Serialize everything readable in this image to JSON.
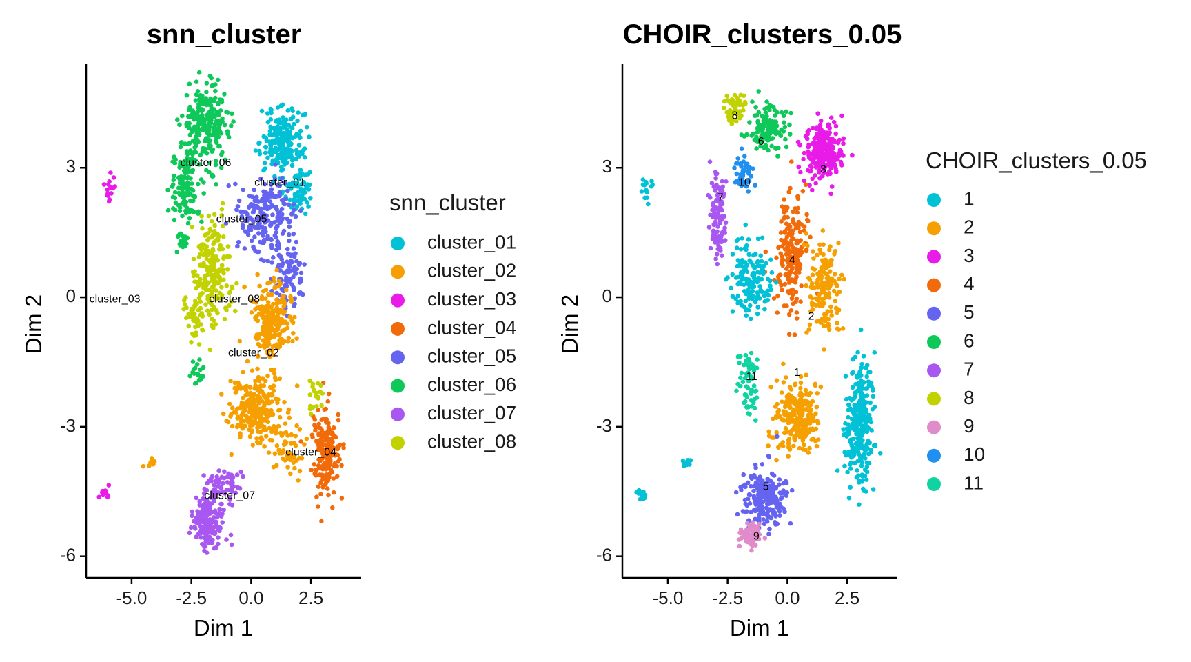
{
  "chart_data": [
    {
      "type": "scatter",
      "title": "snn_cluster",
      "xlabel": "Dim 1",
      "ylabel": "Dim 2",
      "xlim": [
        -6.9,
        4.6
      ],
      "ylim": [
        -6.5,
        5.4
      ],
      "xticks": [
        -5.0,
        -2.5,
        0.0,
        2.5
      ],
      "xtick_labels": [
        "-5.0",
        "-2.5",
        "0.0",
        "2.5"
      ],
      "yticks": [
        -6,
        -3,
        0,
        3
      ],
      "ytick_labels": [
        "-6",
        "-3",
        "0",
        "3"
      ],
      "grid": false,
      "legend": {
        "title": "snn_cluster",
        "placement": "right",
        "entries": [
          {
            "label": "cluster_01",
            "color": "#00C1D5"
          },
          {
            "label": "cluster_02",
            "color": "#F5A000"
          },
          {
            "label": "cluster_03",
            "color": "#E81BE8"
          },
          {
            "label": "cluster_04",
            "color": "#F26B0A"
          },
          {
            "label": "cluster_05",
            "color": "#6464F0"
          },
          {
            "label": "cluster_06",
            "color": "#0FC85A"
          },
          {
            "label": "cluster_07",
            "color": "#A858F0"
          },
          {
            "label": "cluster_08",
            "color": "#C2D200"
          }
        ]
      },
      "cluster_labels": [
        {
          "text": "cluster_06",
          "x": -1.9,
          "y": 3.1
        },
        {
          "text": "cluster_01",
          "x": 1.2,
          "y": 2.65
        },
        {
          "text": "cluster_05",
          "x": -0.4,
          "y": 1.8
        },
        {
          "text": "cluster_03",
          "x": -5.7,
          "y": -0.05
        },
        {
          "text": "cluster_08",
          "x": -0.7,
          "y": -0.05
        },
        {
          "text": "cluster_02",
          "x": 0.1,
          "y": -1.3
        },
        {
          "text": "cluster_04",
          "x": 2.5,
          "y": -3.6
        },
        {
          "text": "cluster_07",
          "x": -0.9,
          "y": -4.6
        }
      ],
      "regions": [
        {
          "c": 5,
          "x": -1.9,
          "y": 4.0,
          "sx": 0.9,
          "sy": 0.8,
          "n": 260
        },
        {
          "c": 5,
          "x": -2.7,
          "y": 2.6,
          "sx": 0.6,
          "sy": 0.8,
          "n": 120
        },
        {
          "c": 5,
          "x": -2.9,
          "y": 1.3,
          "sx": 0.2,
          "sy": 0.2,
          "n": 18
        },
        {
          "c": 0,
          "x": 1.3,
          "y": 3.6,
          "sx": 0.8,
          "sy": 0.7,
          "n": 220
        },
        {
          "c": 0,
          "x": 2.0,
          "y": 2.5,
          "sx": 0.5,
          "sy": 0.5,
          "n": 70
        },
        {
          "c": 4,
          "x": 0.7,
          "y": 1.9,
          "sx": 1.0,
          "sy": 0.8,
          "n": 200
        },
        {
          "c": 4,
          "x": 1.6,
          "y": 0.5,
          "sx": 0.6,
          "sy": 0.7,
          "n": 90
        },
        {
          "c": 7,
          "x": -1.6,
          "y": 0.6,
          "sx": 0.7,
          "sy": 1.1,
          "n": 200
        },
        {
          "c": 7,
          "x": -2.4,
          "y": -0.3,
          "sx": 0.4,
          "sy": 0.7,
          "n": 50
        },
        {
          "c": 1,
          "x": 0.9,
          "y": -0.5,
          "sx": 0.8,
          "sy": 0.8,
          "n": 220
        },
        {
          "c": 1,
          "x": 0.2,
          "y": -2.6,
          "sx": 1.0,
          "sy": 0.7,
          "n": 260
        },
        {
          "c": 1,
          "x": 1.5,
          "y": -3.5,
          "sx": 0.6,
          "sy": 0.5,
          "n": 60
        },
        {
          "c": 3,
          "x": 3.1,
          "y": -3.6,
          "sx": 0.5,
          "sy": 0.9,
          "n": 180
        },
        {
          "c": 6,
          "x": -1.8,
          "y": -5.2,
          "sx": 0.6,
          "sy": 0.5,
          "n": 160
        },
        {
          "c": 6,
          "x": -1.2,
          "y": -4.4,
          "sx": 0.6,
          "sy": 0.4,
          "n": 70
        },
        {
          "c": 2,
          "x": -5.9,
          "y": 2.5,
          "sx": 0.25,
          "sy": 0.3,
          "n": 16
        },
        {
          "c": 2,
          "x": -6.1,
          "y": -4.55,
          "sx": 0.2,
          "sy": 0.15,
          "n": 14
        },
        {
          "c": 1,
          "x": -4.2,
          "y": -3.8,
          "sx": 0.2,
          "sy": 0.15,
          "n": 8
        },
        {
          "c": 5,
          "x": -2.3,
          "y": -1.8,
          "sx": 0.3,
          "sy": 0.4,
          "n": 20
        },
        {
          "c": 7,
          "x": 2.7,
          "y": -2.3,
          "sx": 0.3,
          "sy": 0.4,
          "n": 20
        }
      ]
    },
    {
      "type": "scatter",
      "title": "CHOIR_clusters_0.05",
      "xlabel": "Dim 1",
      "ylabel": "Dim 2",
      "xlim": [
        -6.9,
        4.6
      ],
      "ylim": [
        -6.5,
        5.4
      ],
      "xticks": [
        -5.0,
        -2.5,
        0.0,
        2.5
      ],
      "xtick_labels": [
        "-5.0",
        "-2.5",
        "0.0",
        "2.5"
      ],
      "yticks": [
        -6,
        -3,
        0,
        3
      ],
      "ytick_labels": [
        "-6",
        "-3",
        "0",
        "3"
      ],
      "grid": false,
      "legend": {
        "title": "CHOIR_clusters_0.05",
        "placement": "right",
        "entries": [
          {
            "label": "1",
            "color": "#00C1D5"
          },
          {
            "label": "2",
            "color": "#F5A000"
          },
          {
            "label": "3",
            "color": "#E81BE8"
          },
          {
            "label": "4",
            "color": "#F26B0A"
          },
          {
            "label": "5",
            "color": "#6464F0"
          },
          {
            "label": "6",
            "color": "#0FC85A"
          },
          {
            "label": "7",
            "color": "#A858F0"
          },
          {
            "label": "8",
            "color": "#C2D200"
          },
          {
            "label": "9",
            "color": "#E08CCB"
          },
          {
            "label": "10",
            "color": "#1F8FF0"
          },
          {
            "label": "11",
            "color": "#0FD3A0"
          }
        ]
      },
      "cluster_labels": [
        {
          "text": "8",
          "x": -2.2,
          "y": 4.2
        },
        {
          "text": "6",
          "x": -1.1,
          "y": 3.6
        },
        {
          "text": "3",
          "x": 1.5,
          "y": 2.95
        },
        {
          "text": "10",
          "x": -1.8,
          "y": 2.65
        },
        {
          "text": "7",
          "x": -2.8,
          "y": 2.3
        },
        {
          "text": "4",
          "x": 0.2,
          "y": 0.85
        },
        {
          "text": "2",
          "x": 1.0,
          "y": -0.45
        },
        {
          "text": "1",
          "x": 0.4,
          "y": -1.75
        },
        {
          "text": "11",
          "x": -1.5,
          "y": -1.85
        },
        {
          "text": "5",
          "x": -0.9,
          "y": -4.4
        },
        {
          "text": "9",
          "x": -1.3,
          "y": -5.55
        }
      ],
      "regions": [
        {
          "c": 7,
          "x": -2.2,
          "y": 4.4,
          "sx": 0.35,
          "sy": 0.3,
          "n": 60
        },
        {
          "c": 5,
          "x": -0.8,
          "y": 3.9,
          "sx": 0.7,
          "sy": 0.5,
          "n": 130
        },
        {
          "c": 2,
          "x": 1.5,
          "y": 3.4,
          "sx": 0.7,
          "sy": 0.6,
          "n": 240
        },
        {
          "c": 9,
          "x": -1.8,
          "y": 2.9,
          "sx": 0.4,
          "sy": 0.4,
          "n": 50
        },
        {
          "c": 6,
          "x": -2.9,
          "y": 2.0,
          "sx": 0.3,
          "sy": 1.0,
          "n": 90
        },
        {
          "c": 6,
          "x": -2.9,
          "y": 1.3,
          "sx": 0.2,
          "sy": 0.2,
          "n": 18
        },
        {
          "c": 3,
          "x": 0.2,
          "y": 1.0,
          "sx": 0.6,
          "sy": 1.2,
          "n": 200
        },
        {
          "c": 1,
          "x": 1.5,
          "y": 0.2,
          "sx": 0.6,
          "sy": 1.0,
          "n": 160
        },
        {
          "c": 1,
          "x": 0.4,
          "y": -2.8,
          "sx": 0.8,
          "sy": 0.8,
          "n": 230
        },
        {
          "c": 0,
          "x": -1.5,
          "y": 0.4,
          "sx": 0.8,
          "sy": 0.8,
          "n": 150
        },
        {
          "c": 0,
          "x": 3.0,
          "y": -3.0,
          "sx": 0.55,
          "sy": 1.2,
          "n": 300
        },
        {
          "c": 10,
          "x": -1.6,
          "y": -1.9,
          "sx": 0.4,
          "sy": 0.6,
          "n": 60
        },
        {
          "c": 4,
          "x": -1.0,
          "y": -4.6,
          "sx": 0.8,
          "sy": 0.6,
          "n": 210
        },
        {
          "c": 8,
          "x": -1.5,
          "y": -5.5,
          "sx": 0.45,
          "sy": 0.25,
          "n": 70
        },
        {
          "c": 0,
          "x": -5.9,
          "y": 2.5,
          "sx": 0.25,
          "sy": 0.3,
          "n": 16
        },
        {
          "c": 0,
          "x": -6.1,
          "y": -4.55,
          "sx": 0.2,
          "sy": 0.15,
          "n": 14
        },
        {
          "c": 0,
          "x": -4.2,
          "y": -3.8,
          "sx": 0.2,
          "sy": 0.15,
          "n": 8
        }
      ]
    }
  ]
}
